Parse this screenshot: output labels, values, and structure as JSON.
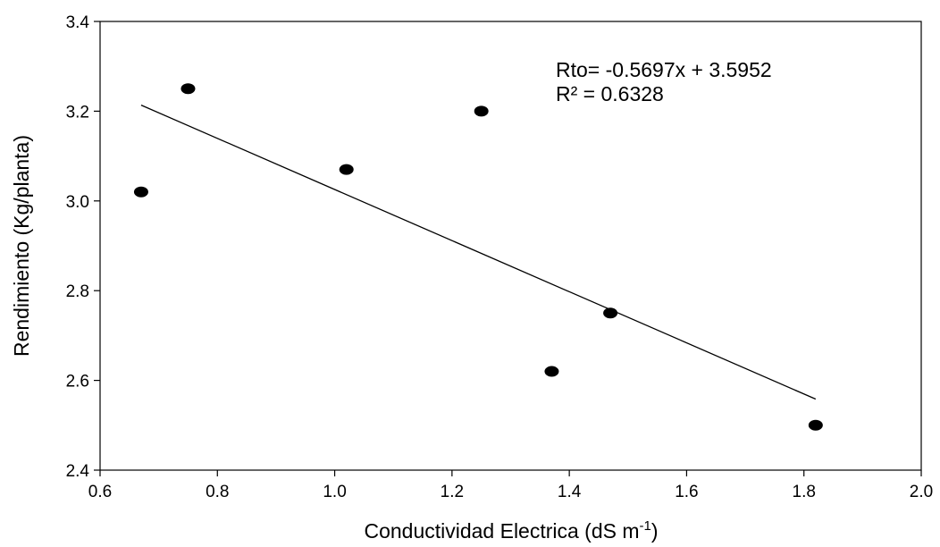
{
  "chart_data": {
    "type": "scatter",
    "title": "",
    "xlabel": {
      "main": "Conductividad Electrica (dS m",
      "sup": "-1",
      "close": ")"
    },
    "ylabel": "Rendimiento (Kg/planta)",
    "xlim": [
      0.6,
      2.0
    ],
    "ylim": [
      2.4,
      3.4
    ],
    "x_ticks": [
      "0.6",
      "0.8",
      "1.0",
      "1.2",
      "1.4",
      "1.6",
      "1.8",
      "2.0"
    ],
    "y_ticks": [
      "2.4",
      "2.6",
      "2.8",
      "3.0",
      "3.2",
      "3.4"
    ],
    "grid": false,
    "series": [
      {
        "points": [
          {
            "x": 0.67,
            "y": 3.02
          },
          {
            "x": 0.75,
            "y": 3.25
          },
          {
            "x": 1.02,
            "y": 3.07
          },
          {
            "x": 1.25,
            "y": 3.2
          },
          {
            "x": 1.37,
            "y": 2.62
          },
          {
            "x": 1.47,
            "y": 2.75
          },
          {
            "x": 1.82,
            "y": 2.5
          }
        ],
        "marker_color": "#000000"
      }
    ],
    "trendline": {
      "slope": -0.5697,
      "intercept": 3.5952,
      "x_start": 0.67,
      "x_end": 1.82,
      "color": "#000000"
    },
    "annotations": [
      "Rto= -0.5697x + 3.5952",
      "R² = 0.6328"
    ]
  }
}
